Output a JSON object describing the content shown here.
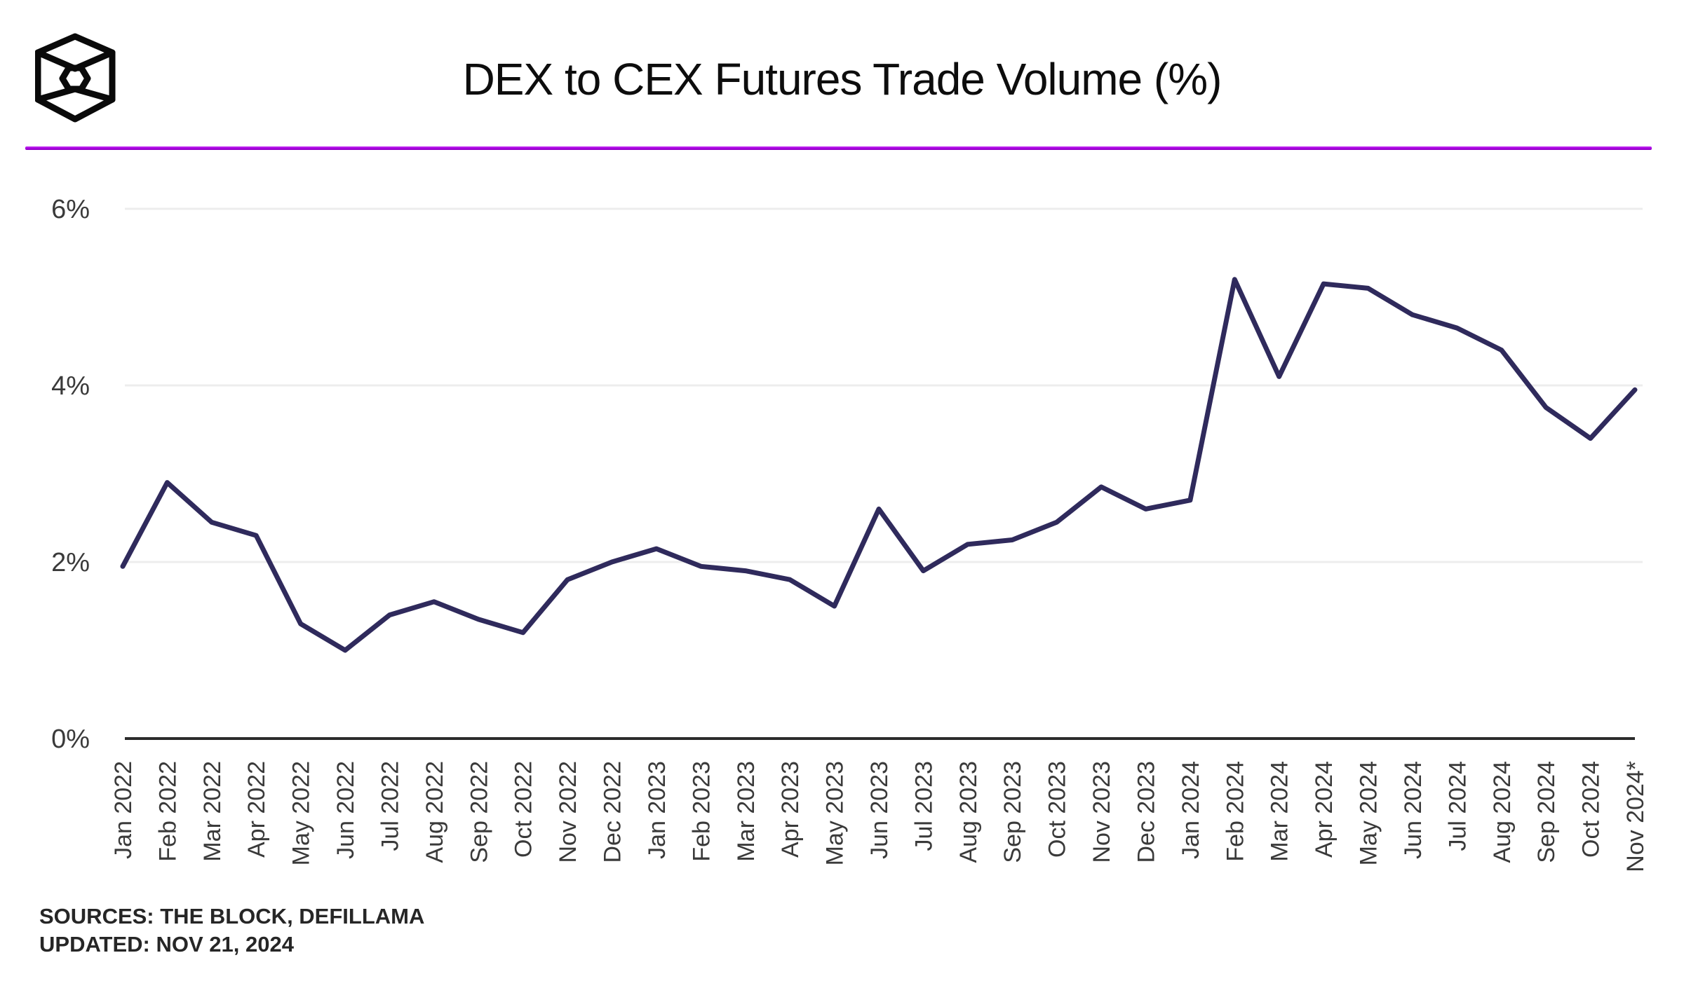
{
  "header": {
    "title": "DEX to CEX Futures Trade Volume (%)",
    "logo_name": "the-block-cube-logo",
    "accent_color": "#A800E0"
  },
  "chart_data": {
    "type": "line",
    "title": "DEX to CEX Futures Trade Volume (%)",
    "categories": [
      "Jan 2022",
      "Feb 2022",
      "Mar 2022",
      "Apr 2022",
      "May 2022",
      "Jun 2022",
      "Jul 2022",
      "Aug 2022",
      "Sep 2022",
      "Oct 2022",
      "Nov 2022",
      "Dec 2022",
      "Jan 2023",
      "Feb 2023",
      "Mar 2023",
      "Apr 2023",
      "May 2023",
      "Jun 2023",
      "Jul 2023",
      "Aug 2023",
      "Sep 2023",
      "Oct 2023",
      "Nov 2023",
      "Dec 2023",
      "Jan 2024",
      "Feb 2024",
      "Mar 2024",
      "Apr 2024",
      "May 2024",
      "Jun 2024",
      "Jul 2024",
      "Aug 2024",
      "Sep 2024",
      "Oct 2024",
      "Nov 2024*"
    ],
    "values": [
      1.95,
      2.9,
      2.45,
      2.3,
      1.3,
      1.0,
      1.4,
      1.55,
      1.35,
      1.2,
      1.8,
      2.0,
      2.15,
      1.95,
      1.9,
      1.8,
      1.5,
      2.6,
      1.9,
      2.2,
      2.25,
      2.45,
      2.85,
      2.6,
      2.7,
      5.2,
      4.1,
      5.15,
      5.1,
      4.8,
      4.65,
      4.4,
      3.75,
      3.4,
      3.95
    ],
    "unit": "%",
    "xlabel": "",
    "ylabel": "",
    "ylim": [
      0,
      6.4
    ],
    "yticks": [
      {
        "label": "0%",
        "value": 0
      },
      {
        "label": "2%",
        "value": 2
      },
      {
        "label": "4%",
        "value": 4
      },
      {
        "label": "6%",
        "value": 6
      }
    ],
    "grid": "horizontal",
    "legend": "none",
    "line_color": "#2F2A5C",
    "grid_color": "#EDEDED",
    "axis_color": "#2B2B2B",
    "label_color": "#3A3A3A"
  },
  "footer": {
    "sources_line": "SOURCES: THE BLOCK, DEFILLAMA",
    "updated_line": "UPDATED: NOV 21, 2024"
  }
}
